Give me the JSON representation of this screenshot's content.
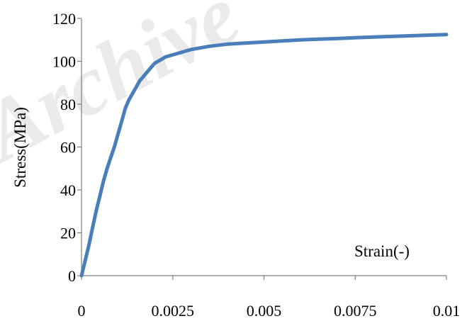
{
  "chart_data": {
    "type": "line",
    "title": "",
    "xlabel": "Strain(-)",
    "ylabel": "Stress(MPa)",
    "xlim": [
      0,
      0.01
    ],
    "ylim": [
      0,
      120
    ],
    "x_ticks": [
      0,
      0.0025,
      0.005,
      0.0075,
      0.01
    ],
    "x_tick_labels": [
      "0",
      "0.0025",
      "0.005",
      "0.0075",
      "0.01"
    ],
    "y_ticks": [
      0,
      20,
      40,
      60,
      80,
      100,
      120
    ],
    "y_tick_labels": [
      "0",
      "20",
      "40",
      "60",
      "80",
      "100",
      "120"
    ],
    "grid": false,
    "legend": "none",
    "series": [
      {
        "color": "#4a7ebb",
        "x": [
          0,
          0.0001,
          0.0002,
          0.0003,
          0.0004,
          0.0005,
          0.0006,
          0.0007,
          0.0008,
          0.0009,
          0.001,
          0.0011,
          0.0012,
          0.0013,
          0.0014,
          0.0015,
          0.0016,
          0.0017,
          0.0018,
          0.0019,
          0.002,
          0.0021,
          0.0022,
          0.0023,
          0.0024,
          0.0025,
          0.0027,
          0.003,
          0.0035,
          0.004,
          0.0045,
          0.005,
          0.0055,
          0.006,
          0.0065,
          0.007,
          0.0075,
          0.008,
          0.0085,
          0.009,
          0.0095,
          0.01
        ],
        "y": [
          0,
          7,
          14,
          22,
          30,
          37,
          44,
          50,
          55,
          60,
          66,
          72,
          78,
          82,
          85,
          88,
          91,
          93,
          95,
          97,
          99,
          100,
          101,
          102,
          102.5,
          103,
          104,
          105.5,
          107,
          108,
          108.5,
          109,
          109.5,
          110,
          110.3,
          110.6,
          111,
          111.3,
          111.6,
          111.9,
          112.2,
          112.5
        ]
      }
    ]
  },
  "watermark": {
    "text": "Archive"
  }
}
